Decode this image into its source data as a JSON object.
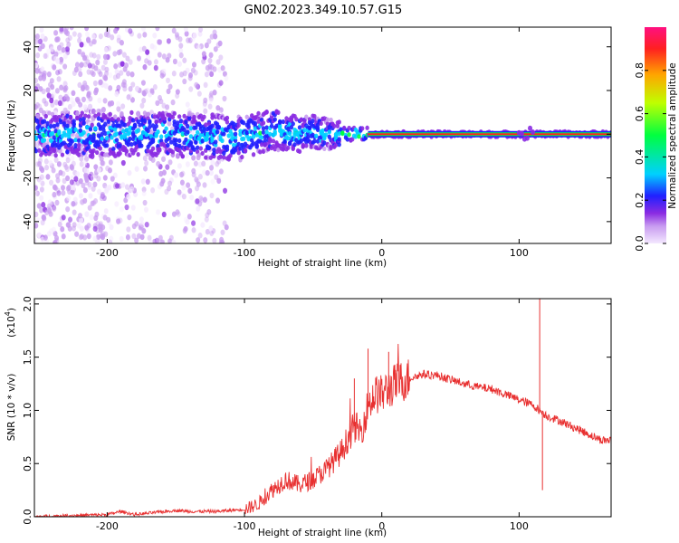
{
  "figure_title": "GN02.2023.349.10.57.G15",
  "chart_data": [
    {
      "type": "heatmap",
      "title": "GN02.2023.349.10.57.G15",
      "xlabel": "Height of straight line (km)",
      "ylabel": "Frequency (Hz)",
      "xlim": [
        -253,
        167
      ],
      "ylim": [
        -50,
        49
      ],
      "x_ticks": [
        -200,
        -100,
        0,
        100
      ],
      "x_tick_labels": [
        "-200",
        "-100",
        "0",
        "100"
      ],
      "y_ticks": [
        -40,
        -20,
        0,
        20,
        40
      ],
      "y_tick_labels": [
        "-40",
        "-20",
        "0",
        "20",
        "40"
      ],
      "colorbar": {
        "label": "Normalized spectral amplitude",
        "range": [
          0,
          1
        ],
        "ticks": [
          0.0,
          0.2,
          0.4,
          0.6,
          0.8
        ],
        "tick_labels": [
          "0.0",
          "0.2",
          "0.4",
          "0.6",
          "0.8"
        ],
        "colors": [
          "#f4e8ff",
          "#c89cf0",
          "#8a2be2",
          "#2020ff",
          "#00d0ff",
          "#00ff40",
          "#c0ff00",
          "#ffa500",
          "#ff2020",
          "#ff1080"
        ]
      },
      "ridge": {
        "description_x": [
          -253,
          -200,
          -150,
          -100,
          -80,
          -60,
          -50,
          -40,
          -30,
          -10,
          0,
          50,
          100,
          110,
          167
        ],
        "frequency": [
          0,
          0,
          0,
          -2,
          2,
          0,
          1,
          0,
          0,
          0,
          0,
          0,
          0,
          0,
          0
        ]
      },
      "grid": false
    },
    {
      "type": "line",
      "xlabel": "Height of straight line (km)",
      "ylabel": "SNR (10 * v/v)",
      "scale_note": "(x10",
      "scale_exponent": "4",
      "xlim": [
        -253,
        167
      ],
      "ylim": [
        0,
        2.05
      ],
      "x_ticks": [
        -200,
        -100,
        0,
        100
      ],
      "x_tick_labels": [
        "-200",
        "-100",
        "0",
        "100"
      ],
      "y_ticks": [
        0.0,
        0.5,
        1.0,
        1.5,
        2.0
      ],
      "y_tick_labels": [
        "0.0",
        "0.5",
        "1.0",
        "1.5",
        "2.0"
      ],
      "line_color": "#e83030",
      "series": [
        {
          "x": [
            -253,
            -230,
            -200,
            -190,
            -180,
            -150,
            -140,
            -120,
            -100,
            -90,
            -80,
            -70,
            -60,
            -50,
            -40,
            -30,
            -20,
            -15,
            -10,
            -5,
            0,
            10,
            20,
            30,
            40,
            50,
            60,
            70,
            80,
            90,
            100,
            110,
            115,
            120,
            130,
            140,
            150,
            160,
            167
          ],
          "values": [
            0.0,
            0.01,
            0.02,
            0.05,
            0.02,
            0.06,
            0.05,
            0.05,
            0.07,
            0.12,
            0.25,
            0.35,
            0.3,
            0.35,
            0.45,
            0.6,
            0.85,
            0.8,
            1.05,
            1.15,
            1.15,
            1.25,
            1.3,
            1.34,
            1.33,
            1.29,
            1.25,
            1.22,
            1.2,
            1.15,
            1.1,
            1.05,
            1.0,
            0.95,
            0.9,
            0.84,
            0.78,
            0.72,
            0.72
          ]
        }
      ],
      "spikes": [
        {
          "x": -20,
          "value": 1.3
        },
        {
          "x": -10,
          "value": 1.58
        },
        {
          "x": 5,
          "value": 1.55
        },
        {
          "x": 10,
          "value": 1.38
        },
        {
          "x": 115,
          "value": 2.05
        },
        {
          "x": 117,
          "value": 0.25
        }
      ],
      "grid": false
    }
  ]
}
